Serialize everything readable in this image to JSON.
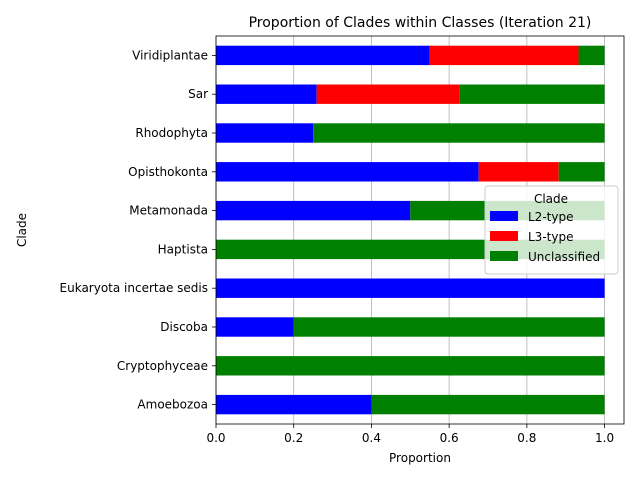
{
  "chart_data": {
    "type": "bar",
    "orientation": "horizontal",
    "stacked": true,
    "title": "Proportion of Clades within Classes (Iteration 21)",
    "xlabel": "Proportion",
    "ylabel": "Clade",
    "xlim": [
      0,
      1.05
    ],
    "xticks": [
      "0.0",
      "0.2",
      "0.4",
      "0.6",
      "0.8",
      "1.0"
    ],
    "grid": "x",
    "categories": [
      "Amoebozoa",
      "Cryptophyceae",
      "Discoba",
      "Eukaryota incertae sedis",
      "Haptista",
      "Metamonada",
      "Opisthokonta",
      "Rhodophyta",
      "Sar",
      "Viridiplantae"
    ],
    "series": [
      {
        "name": "L2-type",
        "color": "#0000ff",
        "values": [
          0.4,
          0.0,
          0.2,
          1.0,
          0.0,
          0.5,
          0.676,
          0.25,
          0.259,
          0.55
        ]
      },
      {
        "name": "L3-type",
        "color": "#ff0000",
        "values": [
          0.0,
          0.0,
          0.0,
          0.0,
          0.0,
          0.0,
          0.206,
          0.0,
          0.368,
          0.383
        ]
      },
      {
        "name": "Unclassified",
        "color": "#008000",
        "values": [
          0.6,
          1.0,
          0.8,
          0.0,
          1.0,
          0.5,
          0.118,
          0.75,
          0.373,
          0.067
        ]
      }
    ],
    "legend": {
      "title": "Clade",
      "placement": "center-right"
    }
  }
}
